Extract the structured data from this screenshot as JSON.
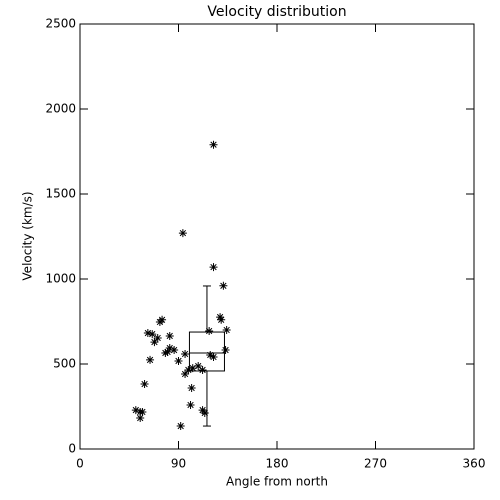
{
  "chart_data": {
    "type": "scatter",
    "title": "Velocity distribution",
    "x_label": "Angle from north",
    "y_label": "Velocity (km/s)",
    "x": [
      122,
      94,
      122,
      131,
      128,
      129,
      134,
      118,
      75,
      73,
      62,
      66,
      82,
      71,
      68,
      82,
      80,
      86,
      78,
      96,
      64,
      90,
      133,
      119,
      122,
      103,
      99,
      108,
      112,
      96,
      59,
      102,
      101,
      112,
      114,
      51,
      55,
      57,
      55,
      92
    ],
    "values": [
      1790,
      1270,
      1070,
      960,
      776,
      760,
      700,
      694,
      760,
      747,
      682,
      676,
      665,
      653,
      629,
      594,
      571,
      582,
      565,
      559,
      524,
      518,
      582,
      553,
      541,
      476,
      465,
      488,
      465,
      441,
      382,
      359,
      259,
      229,
      212,
      229,
      218,
      218,
      182,
      135
    ],
    "color": "#000000",
    "box": {
      "x": [
        100,
        132
      ],
      "low": 135,
      "q1": 459,
      "median": 565,
      "q3": 688,
      "high": 959
    },
    "xlim": [
      0,
      360
    ],
    "xticks": [
      0,
      90,
      180,
      270,
      360
    ],
    "ylim": [
      0,
      2500
    ],
    "yticks": [
      0,
      500,
      1000,
      1500,
      2000,
      2500
    ]
  }
}
